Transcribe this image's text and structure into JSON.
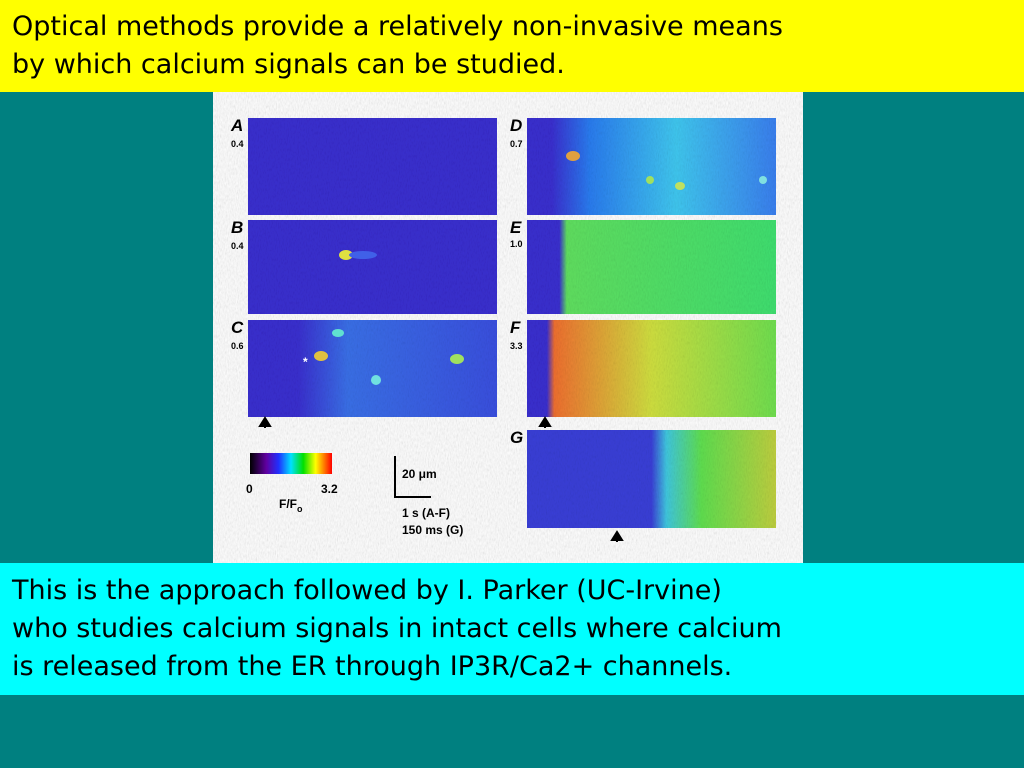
{
  "header": {
    "lines": [
      "Optical methods provide a relatively non-invasive means",
      "by which calcium signals can be studied."
    ]
  },
  "figure": {
    "panels": [
      {
        "letter": "A",
        "value": "0.4"
      },
      {
        "letter": "B",
        "value": "0.4"
      },
      {
        "letter": "C",
        "value": "0.6"
      },
      {
        "letter": "D",
        "value": "0.7"
      },
      {
        "letter": "E",
        "value": "1.0"
      },
      {
        "letter": "F",
        "value": "3.3"
      },
      {
        "letter": "G"
      }
    ],
    "asterisk": "*",
    "colorbar": {
      "min": "0",
      "max": "3.2",
      "label_main": "F/F",
      "label_sub": "o"
    },
    "scale": {
      "length": "20 μm",
      "time": [
        "1 s (A-F)",
        "150 ms (G)"
      ]
    }
  },
  "body": {
    "lines": [
      "This is the approach followed by I. Parker (UC-Irvine)",
      "who studies calcium signals in intact cells where calcium",
      "is released from the ER through IP3R/Ca2+ channels."
    ]
  }
}
